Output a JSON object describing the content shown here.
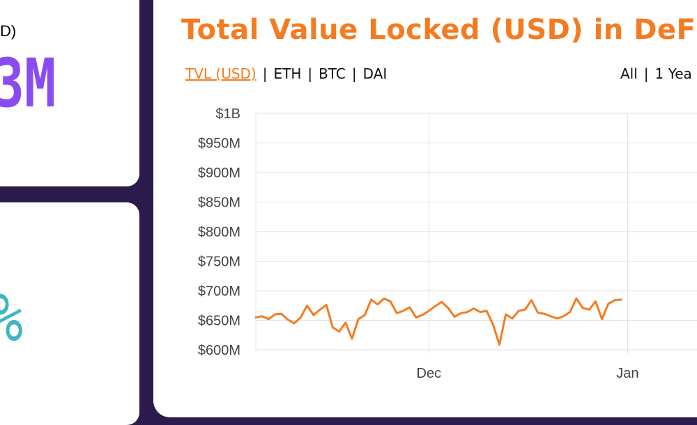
{
  "stats": {
    "top_label": "D)",
    "top_value": "3M",
    "bottom_value": "%"
  },
  "tabs": [
    {
      "label": "TVL (USD)",
      "active": true
    },
    {
      "label": "ETH",
      "active": false
    },
    {
      "label": "BTC",
      "active": false
    },
    {
      "label": "DAI",
      "active": false
    }
  ],
  "ranges": [
    "All",
    "1 Yea"
  ],
  "colors": {
    "accent": "#f47b20",
    "purple": "#8a4cf0",
    "teal": "#3fb6c0",
    "background": "#2b1c4d"
  },
  "chart_data": {
    "type": "line",
    "title": "Total Value Locked (USD) in DeFi",
    "xlabel": "",
    "ylabel": "",
    "ylim": [
      600000000,
      1000000000
    ],
    "yticks": [
      {
        "value": 1000000000,
        "label": "$1B"
      },
      {
        "value": 950000000,
        "label": "$950M"
      },
      {
        "value": 900000000,
        "label": "$900M"
      },
      {
        "value": 850000000,
        "label": "$850M"
      },
      {
        "value": 800000000,
        "label": "$800M"
      },
      {
        "value": 750000000,
        "label": "$750M"
      },
      {
        "value": 700000000,
        "label": "$700M"
      },
      {
        "value": 650000000,
        "label": "$650M"
      },
      {
        "value": 600000000,
        "label": "$600M"
      }
    ],
    "xlim": [
      "2018-11-04",
      "2019-01-14"
    ],
    "xticks": [
      {
        "value": "2018-12-01",
        "label": "Dec"
      },
      {
        "value": "2019-01-01",
        "label": "Jan"
      }
    ],
    "grid": true,
    "series": [
      {
        "color": "#f47b20",
        "points": [
          [
            "2018-11-04",
            655000000
          ],
          [
            "2018-11-05",
            657000000
          ],
          [
            "2018-11-06",
            652000000
          ],
          [
            "2018-11-07",
            660000000
          ],
          [
            "2018-11-08",
            661000000
          ],
          [
            "2018-11-09",
            651000000
          ],
          [
            "2018-11-10",
            645000000
          ],
          [
            "2018-11-11",
            655000000
          ],
          [
            "2018-11-12",
            675000000
          ],
          [
            "2018-11-13",
            659000000
          ],
          [
            "2018-11-14",
            668000000
          ],
          [
            "2018-11-15",
            676000000
          ],
          [
            "2018-11-16",
            638000000
          ],
          [
            "2018-11-17",
            631000000
          ],
          [
            "2018-11-18",
            646000000
          ],
          [
            "2018-11-19",
            619000000
          ],
          [
            "2018-11-20",
            652000000
          ],
          [
            "2018-11-21",
            659000000
          ],
          [
            "2018-11-22",
            685000000
          ],
          [
            "2018-11-23",
            677000000
          ],
          [
            "2018-11-24",
            687000000
          ],
          [
            "2018-11-25",
            682000000
          ],
          [
            "2018-11-26",
            662000000
          ],
          [
            "2018-11-27",
            666000000
          ],
          [
            "2018-11-28",
            672000000
          ],
          [
            "2018-11-29",
            655000000
          ],
          [
            "2018-11-30",
            659000000
          ],
          [
            "2018-12-01",
            666000000
          ],
          [
            "2018-12-02",
            674000000
          ],
          [
            "2018-12-03",
            681000000
          ],
          [
            "2018-12-04",
            671000000
          ],
          [
            "2018-12-05",
            656000000
          ],
          [
            "2018-12-06",
            662000000
          ],
          [
            "2018-12-07",
            664000000
          ],
          [
            "2018-12-08",
            670000000
          ],
          [
            "2018-12-09",
            664000000
          ],
          [
            "2018-12-10",
            666000000
          ],
          [
            "2018-12-11",
            643000000
          ],
          [
            "2018-12-12",
            609000000
          ],
          [
            "2018-12-13",
            660000000
          ],
          [
            "2018-12-14",
            653000000
          ],
          [
            "2018-12-15",
            666000000
          ],
          [
            "2018-12-16",
            668000000
          ],
          [
            "2018-12-17",
            684000000
          ],
          [
            "2018-12-18",
            663000000
          ],
          [
            "2018-12-19",
            661000000
          ],
          [
            "2018-12-20",
            657000000
          ],
          [
            "2018-12-21",
            653000000
          ],
          [
            "2018-12-22",
            657000000
          ],
          [
            "2018-12-23",
            664000000
          ],
          [
            "2018-12-24",
            687000000
          ],
          [
            "2018-12-25",
            671000000
          ],
          [
            "2018-12-26",
            668000000
          ],
          [
            "2018-12-27",
            682000000
          ],
          [
            "2018-12-28",
            652000000
          ],
          [
            "2018-12-29",
            678000000
          ],
          [
            "2018-12-30",
            684000000
          ],
          [
            "2018-12-31",
            685000000
          ]
        ]
      }
    ]
  }
}
